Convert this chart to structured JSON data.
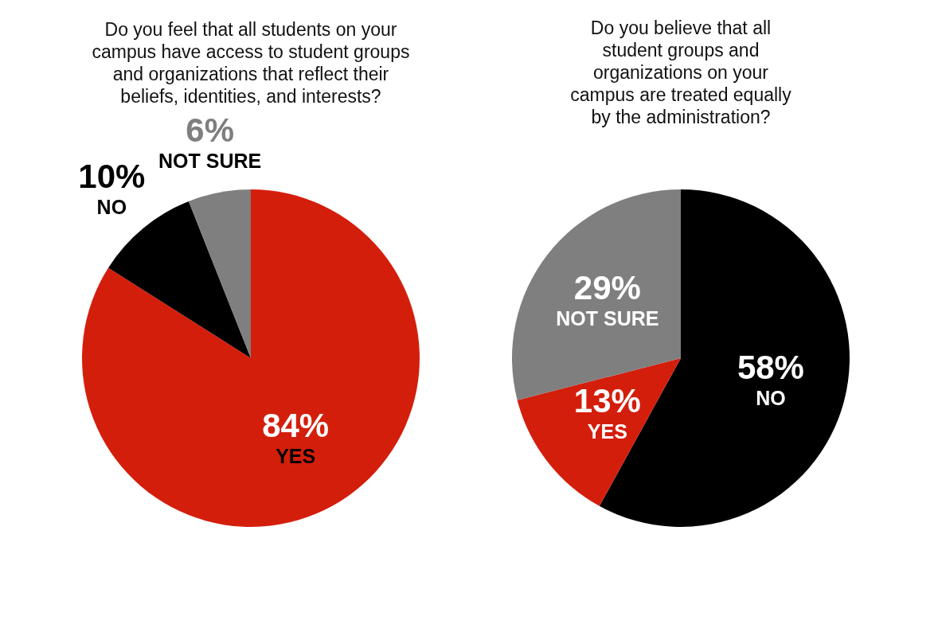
{
  "chart_data": [
    {
      "type": "pie",
      "title": "Do you feel that all students on your campus have access to student groups and organizations that reflect their beliefs, identities, and interests?",
      "categories": [
        "YES",
        "NO",
        "NOT SURE"
      ],
      "values": [
        84,
        10,
        6
      ],
      "value_labels": [
        "84%",
        "10%",
        "6%"
      ],
      "colors": [
        "#d41e0c",
        "#000000",
        "#7f7f7f"
      ],
      "legend": false
    },
    {
      "type": "pie",
      "title": "Do you believe that all student groups and organizations on your campus are treated equally by the administration?",
      "categories": [
        "NO",
        "YES",
        "NOT SURE"
      ],
      "values": [
        58,
        13,
        29
      ],
      "value_labels": [
        "58%",
        "13%",
        "29%"
      ],
      "colors": [
        "#000000",
        "#d41e0c",
        "#7f7f7f"
      ],
      "legend": false
    }
  ]
}
